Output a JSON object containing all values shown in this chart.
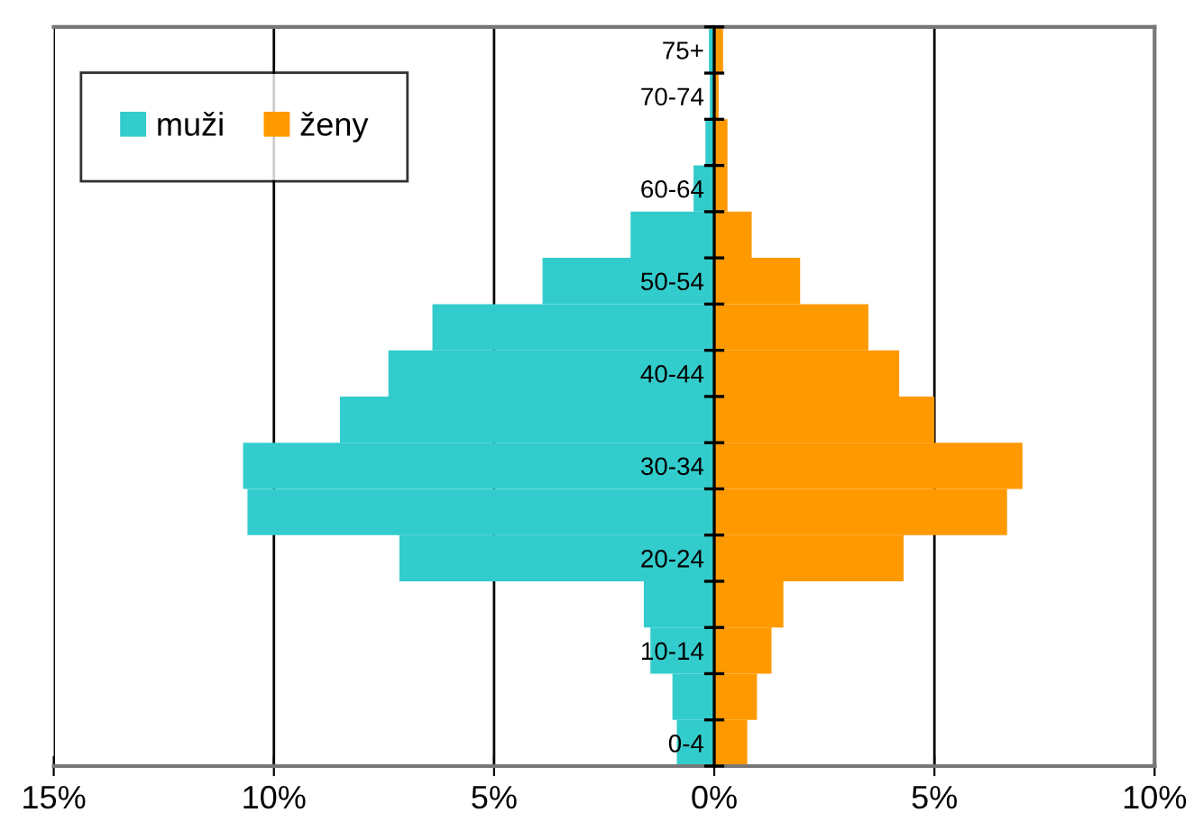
{
  "chart_data": {
    "type": "bar",
    "orientation": "horizontal",
    "stacked": true,
    "categories": [
      "75+",
      "70-74",
      null,
      "60-64",
      null,
      "50-54",
      null,
      "40-44",
      null,
      "30-34",
      null,
      "20-24",
      null,
      "10-14",
      null,
      "0-4"
    ],
    "series": [
      {
        "name": "muži",
        "color": "#33cccc",
        "values": [
          -0.12,
          -0.1,
          -0.2,
          -0.47,
          -1.9,
          -3.9,
          -6.4,
          -7.4,
          -8.5,
          -10.7,
          -10.6,
          -7.15,
          -1.6,
          -1.45,
          -0.95,
          -0.85
        ]
      },
      {
        "name": "ženy",
        "color": "#ff9900",
        "values": [
          0.2,
          0.1,
          0.3,
          0.3,
          0.85,
          1.95,
          3.5,
          4.2,
          5.0,
          7.0,
          6.65,
          4.3,
          1.57,
          1.3,
          0.97,
          0.75
        ]
      }
    ],
    "xlim": [
      -15,
      10
    ],
    "xticks": [
      {
        "value": -15,
        "label": "15%"
      },
      {
        "value": -10,
        "label": "10%"
      },
      {
        "value": -5,
        "label": "5%"
      },
      {
        "value": 0,
        "label": "0%"
      },
      {
        "value": 5,
        "label": "5%"
      },
      {
        "value": 10,
        "label": "10%"
      }
    ],
    "grid": "x",
    "legend": "top left"
  }
}
